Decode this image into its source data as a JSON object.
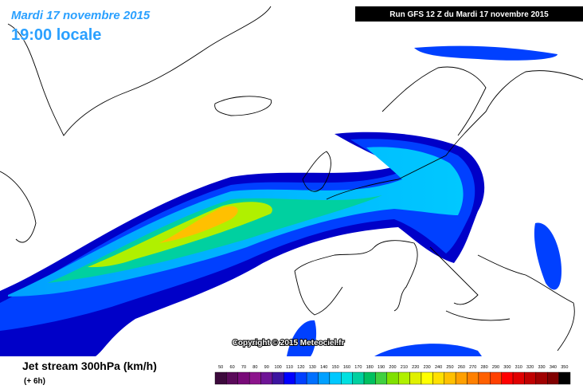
{
  "header": {
    "date": "Mardi 17 novembre 2015",
    "time": "19:00 locale",
    "run": "Run GFS 12 Z du Mardi 17 novembre 2015"
  },
  "copyright": "Copyright © 2015 Meteociel.fr",
  "footer": {
    "title": "Jet stream 300hPa (km/h)",
    "lead": "(+ 6h)"
  },
  "legend": {
    "labels": [
      50,
      60,
      70,
      80,
      90,
      100,
      110,
      120,
      130,
      140,
      150,
      160,
      170,
      180,
      190,
      200,
      210,
      220,
      230,
      240,
      250,
      260,
      270,
      280,
      290,
      300,
      310,
      320,
      330,
      340,
      350
    ],
    "colors": [
      "#3c0a3c",
      "#5a0a5a",
      "#780a78",
      "#8c148c",
      "#6e1496",
      "#3c14a0",
      "#0000ff",
      "#0040ff",
      "#0070ff",
      "#00a0ff",
      "#00c8ff",
      "#00e0e0",
      "#00d0a0",
      "#00c060",
      "#40d040",
      "#80e000",
      "#b0f000",
      "#e0f000",
      "#ffff00",
      "#ffe000",
      "#ffc000",
      "#ffa000",
      "#ff8000",
      "#ff6000",
      "#ff4000",
      "#ff0000",
      "#e00000",
      "#c00000",
      "#a00000",
      "#800000",
      "#000000"
    ]
  }
}
